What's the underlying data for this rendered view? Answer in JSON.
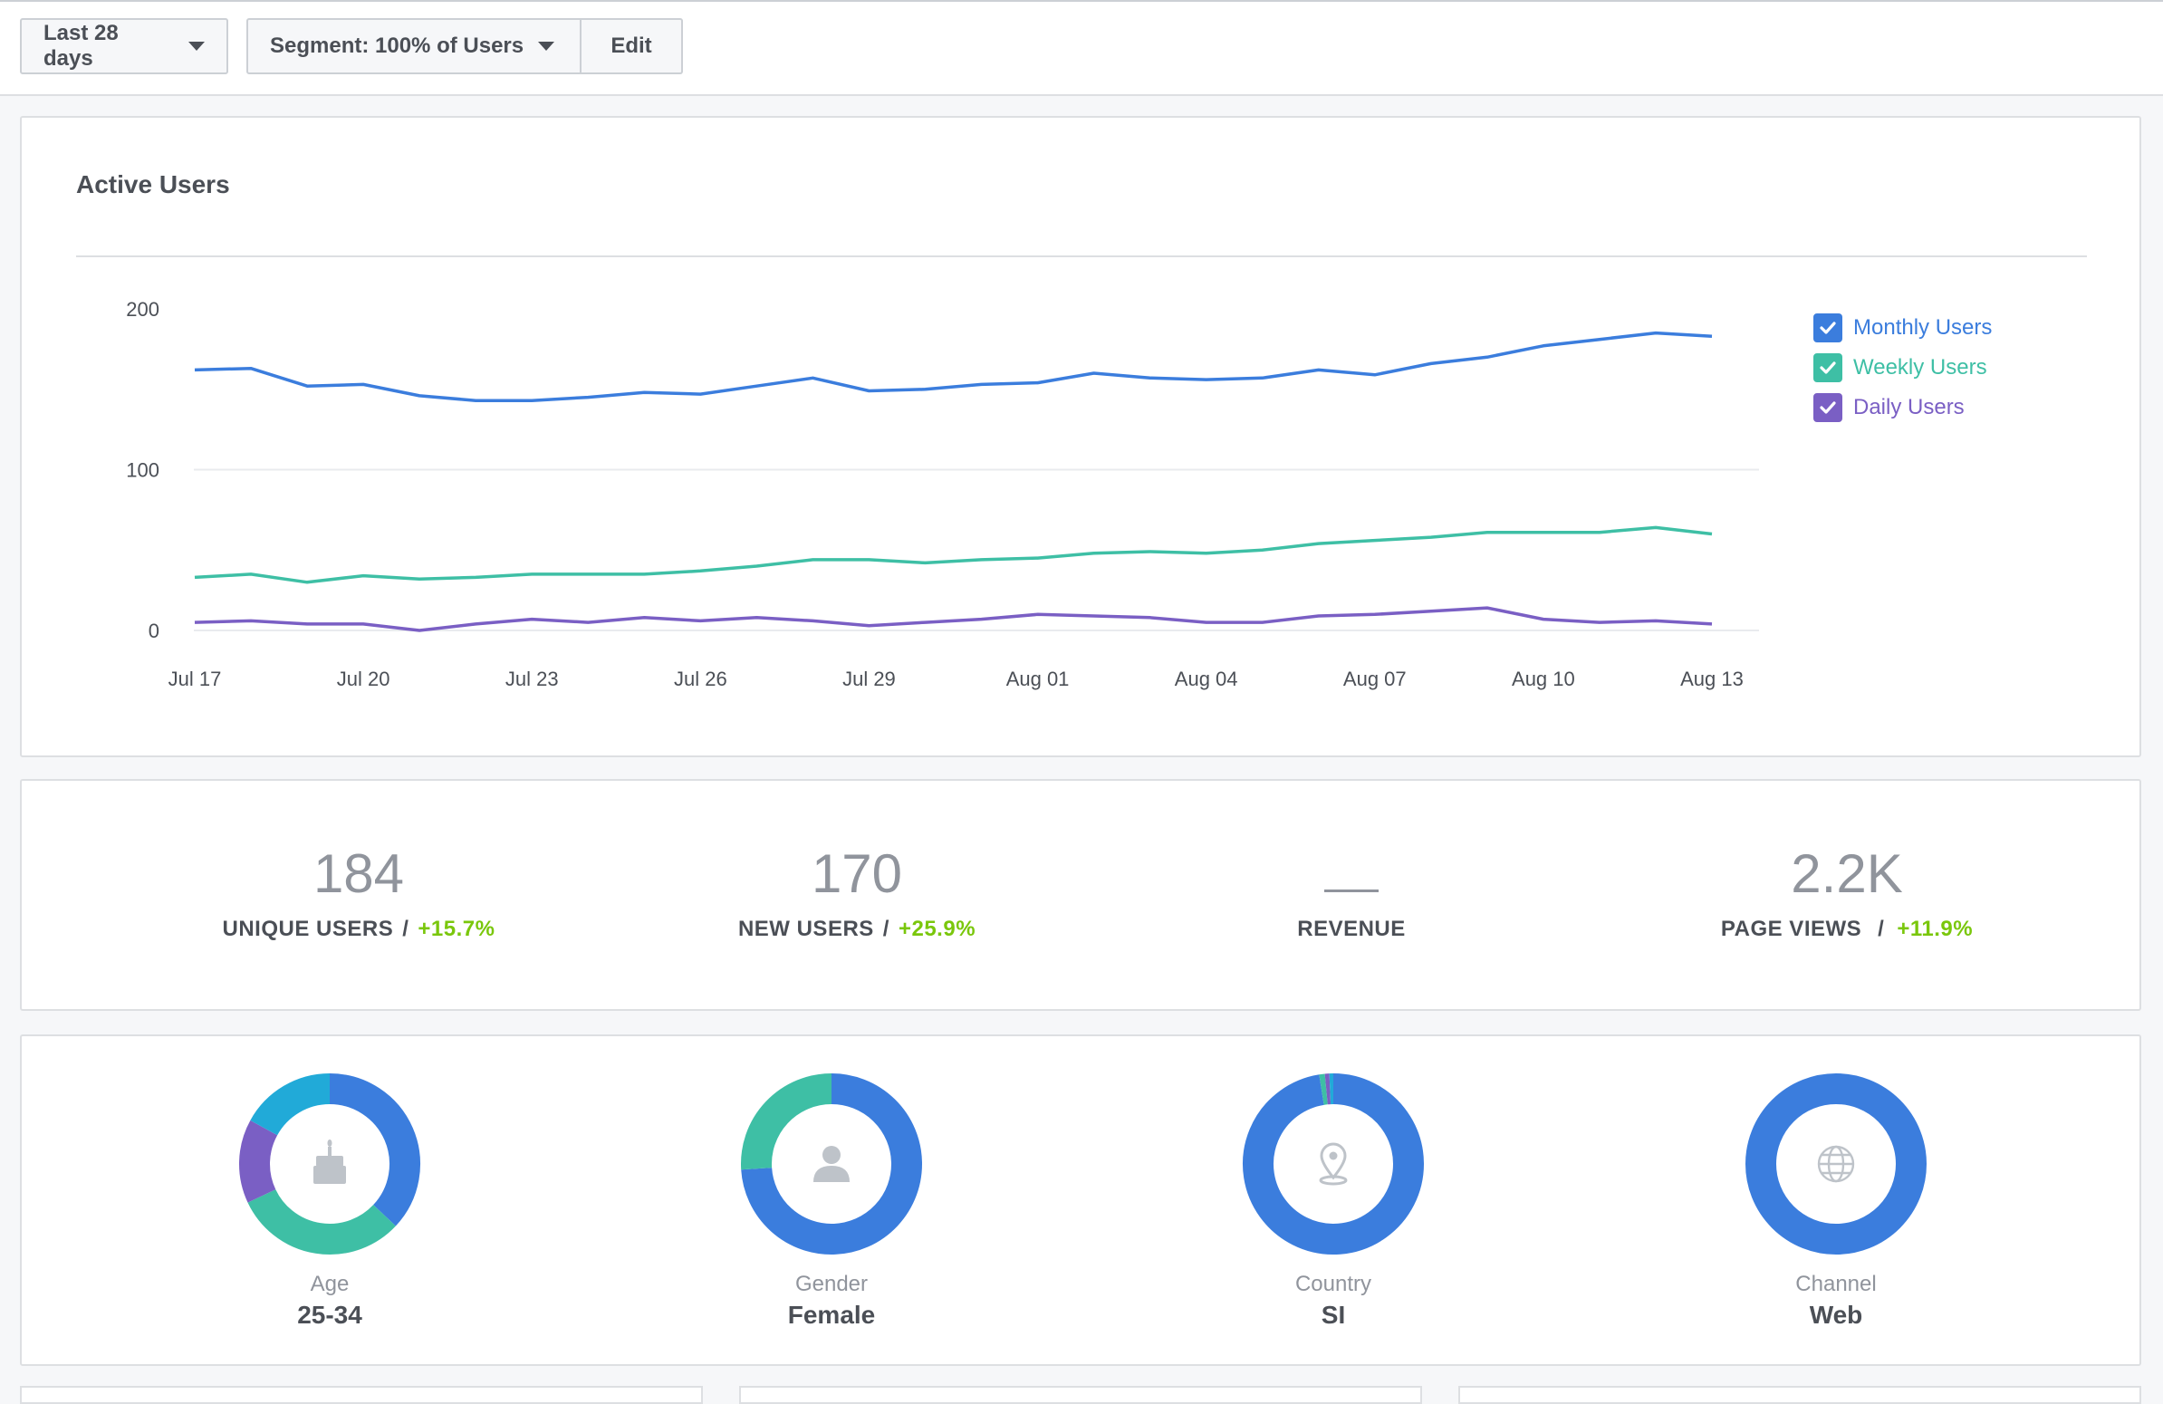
{
  "toolbar": {
    "date_range_label": "Last 28 days",
    "segment_label": "Segment: 100% of Users",
    "edit_label": "Edit"
  },
  "active_users": {
    "title": "Active Users",
    "legend": [
      {
        "label": "Monthly Users",
        "color": "#3b7ddd"
      },
      {
        "label": "Weekly Users",
        "color": "#3ebfa5"
      },
      {
        "label": "Daily Users",
        "color": "#7a5fc4"
      }
    ]
  },
  "chart_data": {
    "type": "line",
    "title": "Active Users",
    "x": [
      "Jul 17",
      "Jul 18",
      "Jul 19",
      "Jul 20",
      "Jul 21",
      "Jul 22",
      "Jul 23",
      "Jul 24",
      "Jul 25",
      "Jul 26",
      "Jul 27",
      "Jul 28",
      "Jul 29",
      "Jul 30",
      "Jul 31",
      "Aug 01",
      "Aug 02",
      "Aug 03",
      "Aug 04",
      "Aug 05",
      "Aug 06",
      "Aug 07",
      "Aug 08",
      "Aug 09",
      "Aug 10",
      "Aug 11",
      "Aug 12",
      "Aug 13"
    ],
    "x_tick_labels": [
      "Jul 17",
      "Jul 20",
      "Jul 23",
      "Jul 26",
      "Jul 29",
      "Aug 01",
      "Aug 04",
      "Aug 07",
      "Aug 10",
      "Aug 13"
    ],
    "y_tick_labels": [
      "0",
      "100",
      "200"
    ],
    "ylim": [
      0,
      200
    ],
    "y_ticks": [
      0,
      100,
      200
    ],
    "grid": true,
    "legend_position": "right",
    "series": [
      {
        "name": "Monthly Users",
        "color": "#3b7ddd",
        "values": [
          162,
          163,
          152,
          153,
          146,
          143,
          143,
          145,
          148,
          147,
          152,
          157,
          149,
          150,
          153,
          154,
          160,
          157,
          156,
          157,
          162,
          159,
          166,
          170,
          177,
          181,
          185,
          183
        ]
      },
      {
        "name": "Weekly Users",
        "color": "#3ebfa5",
        "values": [
          33,
          35,
          30,
          34,
          32,
          33,
          35,
          35,
          35,
          37,
          40,
          44,
          44,
          42,
          44,
          45,
          48,
          49,
          48,
          50,
          54,
          56,
          58,
          61,
          61,
          61,
          64,
          60
        ]
      },
      {
        "name": "Daily Users",
        "color": "#7a5fc4",
        "values": [
          5,
          6,
          4,
          4,
          0,
          4,
          7,
          5,
          8,
          6,
          8,
          6,
          3,
          5,
          7,
          10,
          9,
          8,
          5,
          5,
          9,
          10,
          12,
          14,
          7,
          5,
          6,
          4
        ]
      }
    ]
  },
  "stats": [
    {
      "value": "184",
      "label": "UNIQUE USERS",
      "sep": "/",
      "change": "+15.7%"
    },
    {
      "value": "170",
      "label": "NEW USERS",
      "sep": "/",
      "change": "+25.9%"
    },
    {
      "value": "",
      "label": "REVENUE",
      "sep": "",
      "change": ""
    },
    {
      "value": "2.2K",
      "label": "PAGE VIEWS",
      "sep": "/",
      "change": "+11.9%"
    }
  ],
  "demographics": [
    {
      "category": "Age",
      "value": "25-34",
      "icon": "cake-icon",
      "segments": [
        {
          "fraction": 0.37,
          "color": "#3b7ddd"
        },
        {
          "fraction": 0.31,
          "color": "#3ebfa5"
        },
        {
          "fraction": 0.15,
          "color": "#7a5fc4"
        },
        {
          "fraction": 0.17,
          "color": "#21aad8"
        }
      ]
    },
    {
      "category": "Gender",
      "value": "Female",
      "icon": "person-icon",
      "segments": [
        {
          "fraction": 0.74,
          "color": "#3b7ddd"
        },
        {
          "fraction": 0.26,
          "color": "#3ebfa5"
        }
      ]
    },
    {
      "category": "Country",
      "value": "SI",
      "icon": "location-pin-icon",
      "segments": [
        {
          "fraction": 0.975,
          "color": "#3b7ddd"
        },
        {
          "fraction": 0.01,
          "color": "#3ebfa5"
        },
        {
          "fraction": 0.008,
          "color": "#7a5fc4"
        },
        {
          "fraction": 0.007,
          "color": "#21aad8"
        }
      ]
    },
    {
      "category": "Channel",
      "value": "Web",
      "icon": "globe-icon",
      "segments": [
        {
          "fraction": 1.0,
          "color": "#3b7ddd"
        }
      ]
    }
  ]
}
